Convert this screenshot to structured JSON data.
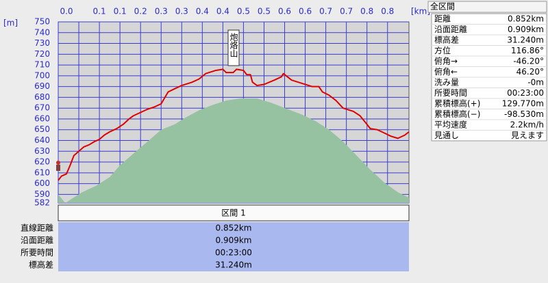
{
  "chart_data": {
    "type": "line",
    "xlabel": "[km]",
    "ylabel": "[m]",
    "annotation": "炮烙山",
    "xlim": [
      0,
      0.852
    ],
    "ylim": [
      582,
      750
    ],
    "xticks": [
      {
        "value": 0,
        "label": "0.0"
      },
      {
        "value": 0.05,
        "label": null
      },
      0.1,
      {
        "value": 0.15,
        "label": "0.1"
      },
      0.2,
      {
        "value": 0.25,
        "label": "0.3"
      },
      0.3,
      {
        "value": 0.35,
        "label": "0.4"
      },
      0.4,
      {
        "value": 0.45,
        "label": "0.5"
      },
      0.5,
      {
        "value": 0.55,
        "label": "0.6"
      },
      0.6,
      {
        "value": 0.65,
        "label": "0.7"
      },
      0.7,
      {
        "value": 0.75,
        "label": "0.8"
      },
      0.8
    ],
    "yticks": [
      582,
      590,
      600,
      610,
      620,
      630,
      640,
      650,
      660,
      670,
      680,
      690,
      700,
      710,
      720,
      730,
      740,
      750
    ],
    "grid": true,
    "grid_color": "#3a3ad0",
    "background": "#d6d6d6",
    "series": [
      {
        "type": "area",
        "color": "#96c2a2",
        "x": [
          0,
          0.017,
          0.033,
          0.058,
          0.092,
          0.125,
          0.15,
          0.183,
          0.217,
          0.25,
          0.283,
          0.308,
          0.342,
          0.375,
          0.408,
          0.442,
          0.483,
          0.517,
          0.558,
          0.592,
          0.625,
          0.658,
          0.692,
          0.725,
          0.758,
          0.792,
          0.825,
          0.852
        ],
        "values": [
          590,
          582,
          586,
          592,
          598,
          606,
          617,
          628,
          639,
          650,
          655,
          661,
          668,
          673,
          677,
          679,
          679,
          675,
          669,
          664,
          658,
          650,
          639,
          626,
          613,
          601,
          592,
          587
        ]
      },
      {
        "type": "line",
        "color": "#e00000",
        "x": [
          0,
          0.008,
          0.02,
          0.03,
          0.038,
          0.05,
          0.062,
          0.075,
          0.088,
          0.1,
          0.112,
          0.125,
          0.142,
          0.158,
          0.172,
          0.183,
          0.2,
          0.217,
          0.233,
          0.25,
          0.267,
          0.283,
          0.3,
          0.325,
          0.342,
          0.358,
          0.383,
          0.4,
          0.408,
          0.425,
          0.433,
          0.45,
          0.458,
          0.467,
          0.472,
          0.483,
          0.5,
          0.525,
          0.542,
          0.547,
          0.567,
          0.592,
          0.617,
          0.633,
          0.642,
          0.658,
          0.675,
          0.692,
          0.717,
          0.733,
          0.75,
          0.758,
          0.775,
          0.792,
          0.808,
          0.825,
          0.842,
          0.852
        ],
        "values": [
          603,
          607,
          609,
          618,
          626,
          630,
          634,
          636,
          639,
          641,
          645,
          648,
          651,
          655,
          660,
          663,
          666,
          669,
          671,
          674,
          685,
          688,
          691,
          694,
          697,
          702,
          705,
          706,
          703,
          703,
          706,
          705,
          701,
          701,
          694,
          691,
          692,
          696,
          699,
          702,
          696,
          693,
          690,
          690,
          685,
          682,
          677,
          670,
          667,
          663,
          655,
          651,
          650,
          647,
          644,
          642,
          645,
          648
        ]
      }
    ]
  },
  "summary": {
    "title": "全区間",
    "rows": [
      [
        "距離",
        "0.852km"
      ],
      [
        "沿面距離",
        "0.909km"
      ],
      [
        "標高差",
        "31.240m"
      ],
      [
        "方位",
        "116.86°"
      ],
      [
        "俯角→",
        "-46.20°"
      ],
      [
        "俯角←",
        "46.20°"
      ],
      [
        "洗み量",
        "-0m"
      ],
      [
        "所要時間",
        "00:23:00"
      ],
      [
        "累積標高(+)",
        "129.770m"
      ],
      [
        "累積標高(−)",
        "-98.530m"
      ],
      [
        "平均速度",
        "2.2km/h"
      ],
      [
        "見通し",
        "見えます"
      ]
    ]
  },
  "section": {
    "title": "区間 1",
    "rows": [
      [
        "直線距離",
        "0.852km"
      ],
      [
        "沿面距離",
        "0.909km"
      ],
      [
        "所要時間",
        "00:23:00"
      ],
      [
        "標高差",
        "31.240m"
      ]
    ]
  }
}
